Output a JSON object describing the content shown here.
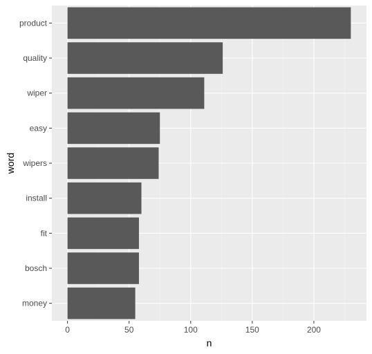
{
  "chart_data": {
    "type": "bar",
    "orientation": "horizontal",
    "categories": [
      "product",
      "quality",
      "wiper",
      "easy",
      "wipers",
      "install",
      "fit",
      "bosch",
      "money"
    ],
    "values": [
      230,
      126,
      111,
      75,
      74,
      60,
      58,
      58,
      55
    ],
    "xlabel": "n",
    "ylabel": "word",
    "xlim": [
      -12.7,
      242.7
    ],
    "xticks": [
      0,
      50,
      100,
      150,
      200
    ],
    "grid": true,
    "legend": "none",
    "colors": {
      "bar": "#595959",
      "panel": "#ebebeb",
      "grid_major": "#ffffff",
      "grid_minor": "#f5f5f5",
      "tick_label": "#4d4d4d",
      "tick_mark": "#333333"
    }
  }
}
